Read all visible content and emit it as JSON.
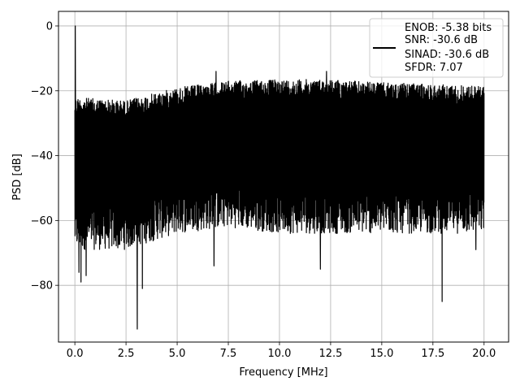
{
  "chart_data": {
    "type": "line",
    "title": "",
    "xlabel": "Frequency [MHz]",
    "ylabel": "PSD [dB]",
    "xlim": [
      -0.8,
      21.2
    ],
    "ylim": [
      -97.5,
      4.5
    ],
    "x_ticks": [
      0.0,
      2.5,
      5.0,
      7.5,
      10.0,
      12.5,
      15.0,
      17.5,
      20.0
    ],
    "x_tick_labels": [
      "0.0",
      "2.5",
      "5.0",
      "7.5",
      "10.0",
      "12.5",
      "15.0",
      "17.5",
      "20.0"
    ],
    "y_ticks": [
      0,
      -20,
      -40,
      -60,
      -80
    ],
    "y_tick_labels": [
      "0",
      "−20",
      "−40",
      "−60",
      "−80"
    ],
    "grid": true,
    "legend_position": "top-right",
    "series": [
      {
        "name": "",
        "color": "#000000",
        "x_range_mhz": [
          0.0,
          20.0
        ],
        "upper_envelope": [
          {
            "x": 0.0,
            "y": -22
          },
          {
            "x": 2.5,
            "y": -23
          },
          {
            "x": 5.0,
            "y": -19
          },
          {
            "x": 7.5,
            "y": -17
          },
          {
            "x": 10.0,
            "y": -16.5
          },
          {
            "x": 12.5,
            "y": -16.5
          },
          {
            "x": 15.0,
            "y": -17.5
          },
          {
            "x": 17.5,
            "y": -18
          },
          {
            "x": 20.0,
            "y": -18.5
          }
        ],
        "lower_envelope": [
          {
            "x": 0.0,
            "y": -65
          },
          {
            "x": 2.5,
            "y": -65
          },
          {
            "x": 5.0,
            "y": -60
          },
          {
            "x": 7.5,
            "y": -58
          },
          {
            "x": 10.0,
            "y": -60
          },
          {
            "x": 12.5,
            "y": -60
          },
          {
            "x": 15.0,
            "y": -60
          },
          {
            "x": 17.5,
            "y": -60
          },
          {
            "x": 20.0,
            "y": -60
          }
        ],
        "peaks": [
          {
            "x": 0.02,
            "y": 0
          },
          {
            "x": 6.9,
            "y": -14
          },
          {
            "x": 12.3,
            "y": -14
          }
        ],
        "dips": [
          {
            "x": 0.2,
            "y": -76
          },
          {
            "x": 0.3,
            "y": -79
          },
          {
            "x": 0.55,
            "y": -77
          },
          {
            "x": 3.05,
            "y": -93.5
          },
          {
            "x": 3.3,
            "y": -81
          },
          {
            "x": 6.8,
            "y": -74
          },
          {
            "x": 12.0,
            "y": -75
          },
          {
            "x": 17.95,
            "y": -85
          },
          {
            "x": 19.6,
            "y": -69
          }
        ]
      }
    ],
    "legend": {
      "lines": [
        "ENOB: -5.38 bits",
        "SNR: -30.6 dB",
        "SINAD: -30.6 dB",
        "SFDR: 7.07"
      ]
    }
  }
}
